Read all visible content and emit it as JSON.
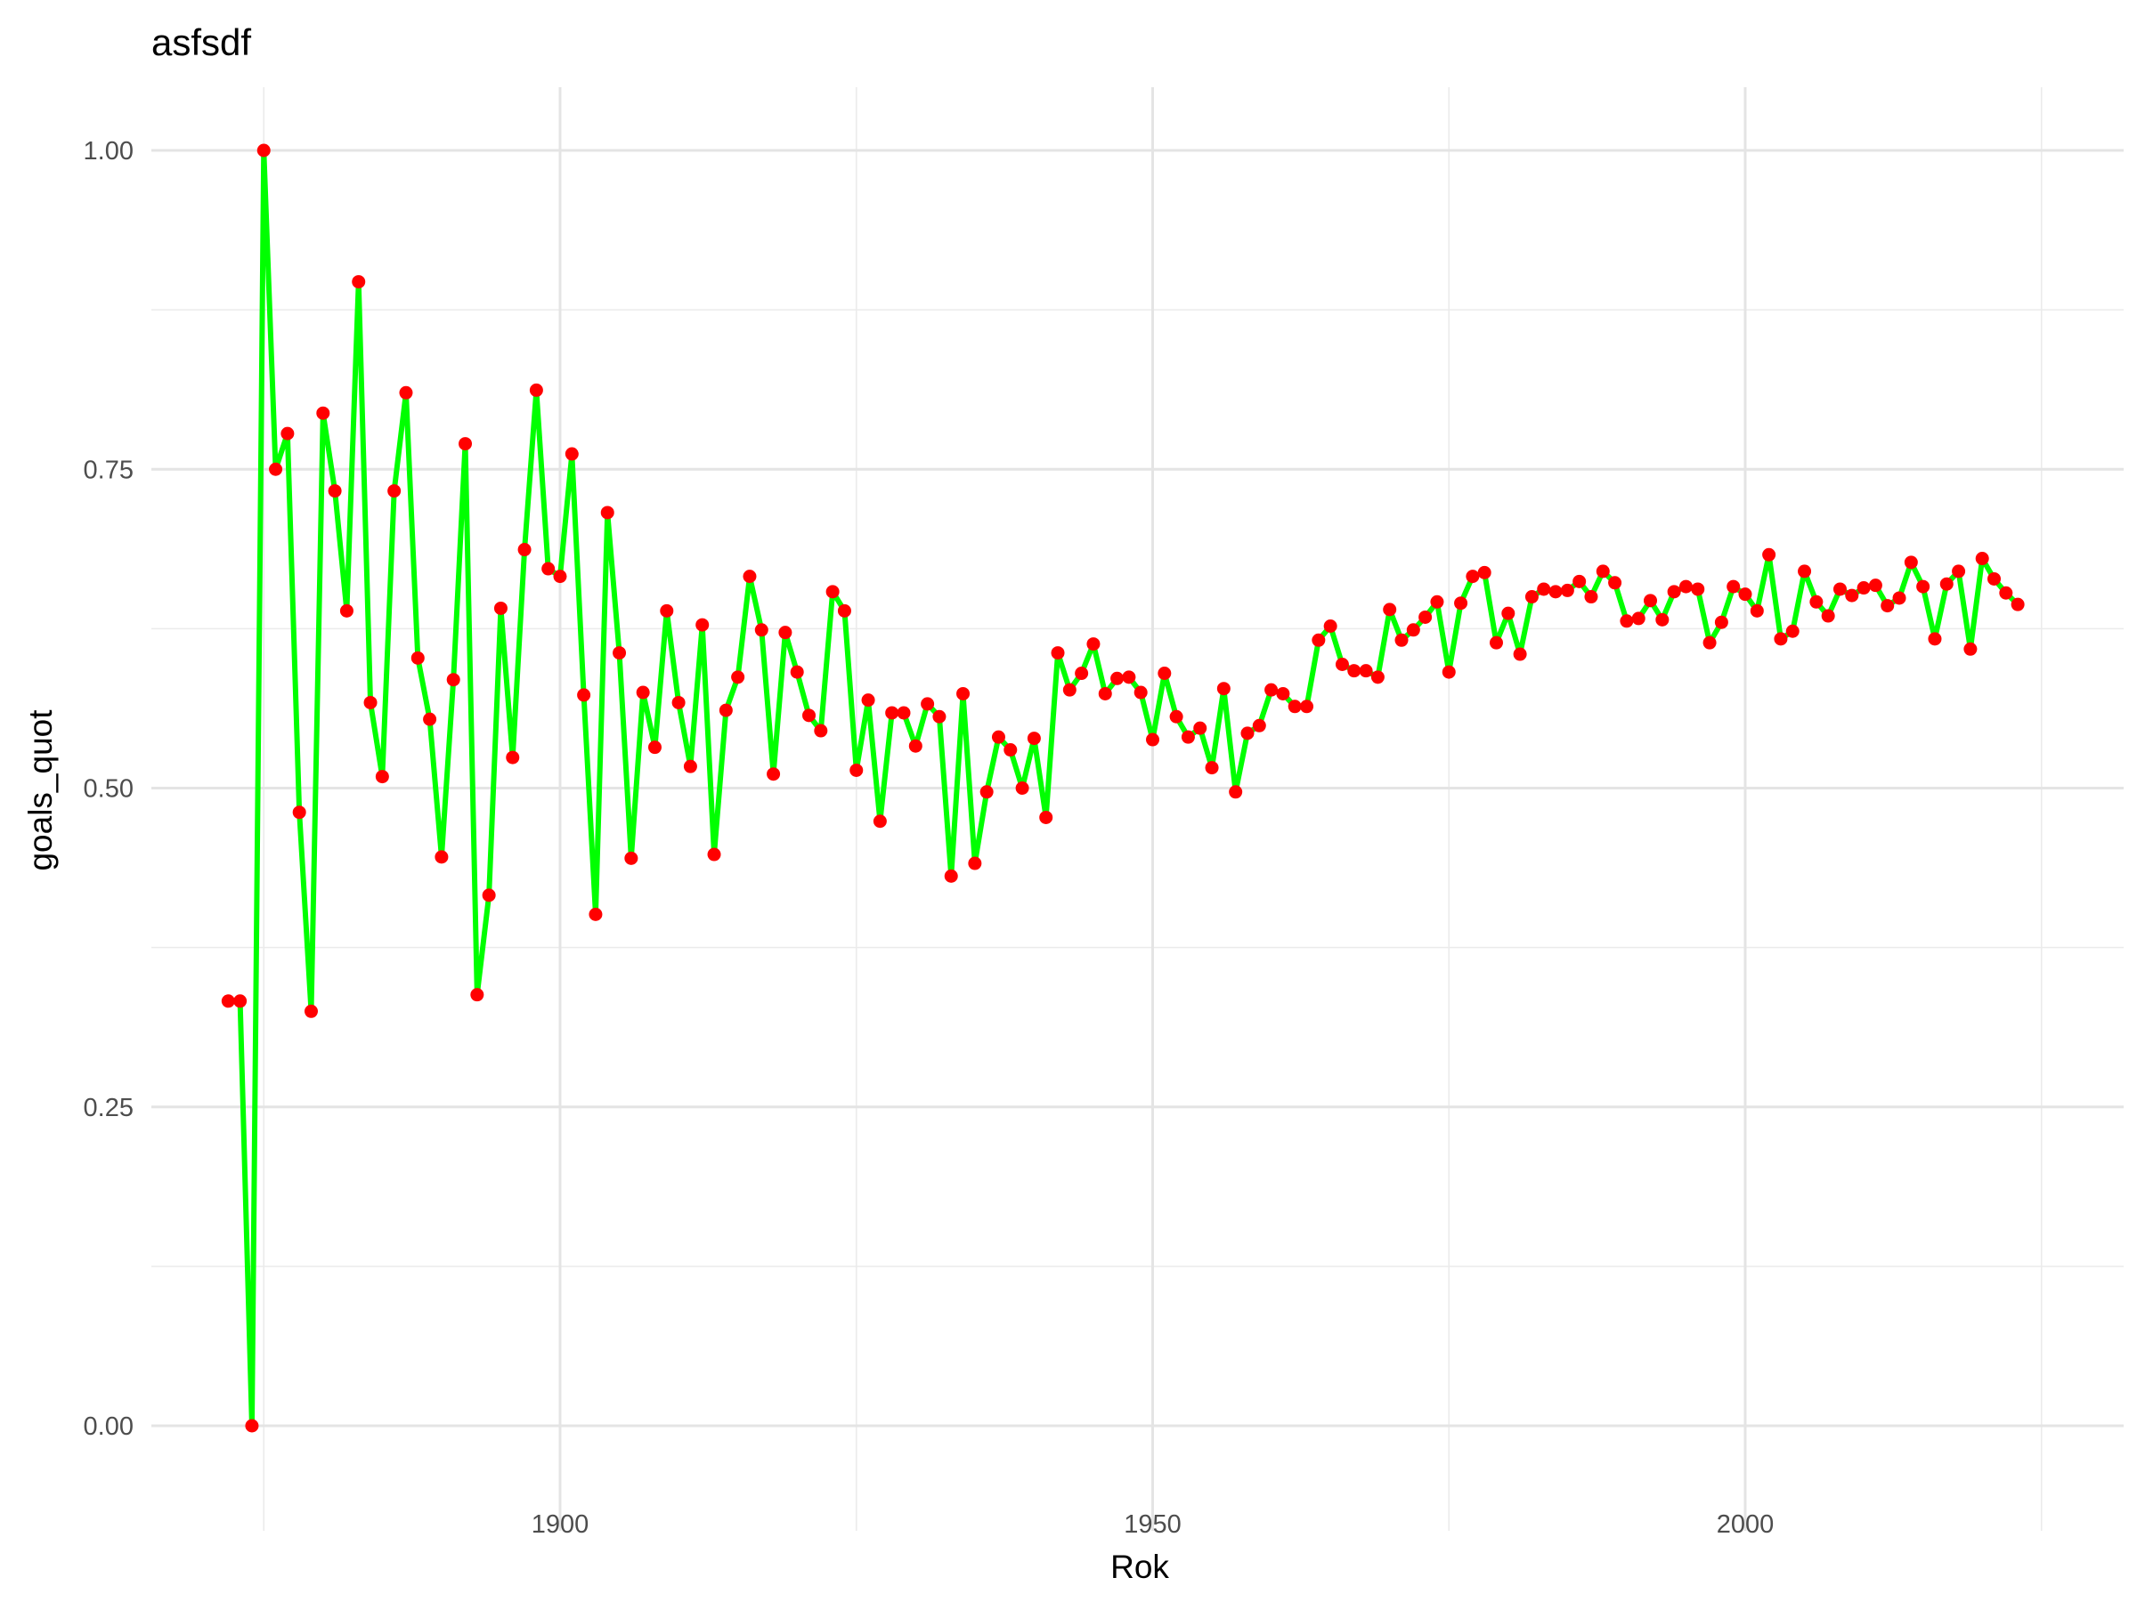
{
  "chart_data": {
    "type": "line",
    "title": "asfsdf",
    "xlabel": "Rok",
    "ylabel": "goals_quot",
    "xlim": [
      1872,
      2023
    ],
    "ylim": [
      0,
      1
    ],
    "x_ticks": [
      1900,
      1950,
      2000
    ],
    "y_ticks": [
      0,
      0.25,
      0.5,
      0.75,
      1
    ],
    "y_tick_labels": [
      "0.00",
      "0.25",
      "0.50",
      "0.75",
      "1.00"
    ],
    "grid": true,
    "line_color": "#00ff00",
    "point_color": "#ff0000",
    "x": [
      1872,
      1873,
      1874,
      1875,
      1876,
      1877,
      1878,
      1879,
      1880,
      1881,
      1882,
      1883,
      1884,
      1885,
      1886,
      1887,
      1888,
      1889,
      1890,
      1891,
      1892,
      1893,
      1894,
      1895,
      1896,
      1897,
      1898,
      1899,
      1900,
      1901,
      1902,
      1903,
      1904,
      1905,
      1906,
      1907,
      1908,
      1909,
      1910,
      1911,
      1912,
      1913,
      1914,
      1915,
      1916,
      1917,
      1918,
      1919,
      1920,
      1921,
      1922,
      1923,
      1924,
      1925,
      1926,
      1927,
      1928,
      1929,
      1930,
      1931,
      1932,
      1933,
      1934,
      1935,
      1936,
      1937,
      1938,
      1939,
      1940,
      1941,
      1942,
      1943,
      1944,
      1945,
      1946,
      1947,
      1948,
      1949,
      1950,
      1951,
      1952,
      1953,
      1954,
      1955,
      1956,
      1957,
      1958,
      1959,
      1960,
      1961,
      1962,
      1963,
      1964,
      1965,
      1966,
      1967,
      1968,
      1969,
      1970,
      1971,
      1972,
      1973,
      1974,
      1975,
      1976,
      1977,
      1978,
      1979,
      1980,
      1981,
      1982,
      1983,
      1984,
      1985,
      1986,
      1987,
      1988,
      1989,
      1990,
      1991,
      1992,
      1993,
      1994,
      1995,
      1996,
      1997,
      1998,
      1999,
      2000,
      2001,
      2002,
      2003,
      2004,
      2005,
      2006,
      2007,
      2008,
      2009,
      2010,
      2011,
      2012,
      2013,
      2014,
      2015,
      2016,
      2017,
      2018,
      2019,
      2020,
      2021,
      2022,
      2023
    ],
    "values": [
      0.333,
      0.333,
      0.0,
      1.0,
      0.75,
      0.778,
      0.481,
      0.325,
      0.794,
      0.733,
      0.639,
      0.897,
      0.567,
      0.509,
      0.733,
      0.81,
      0.602,
      0.554,
      0.446,
      0.585,
      0.77,
      0.338,
      0.416,
      0.641,
      0.524,
      0.687,
      0.812,
      0.672,
      0.666,
      0.762,
      0.573,
      0.401,
      0.716,
      0.606,
      0.445,
      0.575,
      0.532,
      0.639,
      0.567,
      0.517,
      0.628,
      0.448,
      0.561,
      0.587,
      0.666,
      0.624,
      0.511,
      0.622,
      0.591,
      0.557,
      0.545,
      0.654,
      0.639,
      0.514,
      0.569,
      0.474,
      0.559,
      0.559,
      0.533,
      0.566,
      0.556,
      0.431,
      0.574,
      0.441,
      0.497,
      0.54,
      0.53,
      0.5,
      0.539,
      0.477,
      0.606,
      0.577,
      0.59,
      0.613,
      0.574,
      0.586,
      0.587,
      0.575,
      0.538,
      0.59,
      0.556,
      0.54,
      0.547,
      0.516,
      0.578,
      0.497,
      0.543,
      0.549,
      0.577,
      0.574,
      0.564,
      0.564,
      0.616,
      0.627,
      0.597,
      0.592,
      0.592,
      0.587,
      0.64,
      0.616,
      0.624,
      0.634,
      0.646,
      0.591,
      0.645,
      0.666,
      0.669,
      0.614,
      0.637,
      0.605,
      0.65,
      0.656,
      0.654,
      0.655,
      0.662,
      0.65,
      0.67,
      0.661,
      0.631,
      0.633,
      0.647,
      0.632,
      0.654,
      0.658,
      0.656,
      0.614,
      0.63,
      0.658,
      0.652,
      0.639,
      0.683,
      0.617,
      0.623,
      0.67,
      0.646,
      0.635,
      0.656,
      0.651,
      0.657,
      0.659,
      0.643,
      0.649,
      0.677,
      0.658,
      0.617,
      0.66,
      0.67,
      0.609,
      0.68,
      0.664,
      0.653,
      0.644
    ]
  }
}
